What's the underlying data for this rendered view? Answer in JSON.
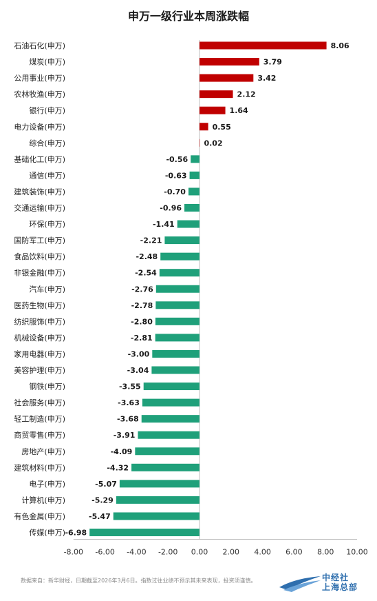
{
  "chart_data": {
    "type": "bar",
    "orientation": "horizontal",
    "title": "申万一级行业本周涨跌幅",
    "categories": [
      "石油石化(申万)",
      "煤炭(申万)",
      "公用事业(申万)",
      "农林牧渔(申万)",
      "银行(申万)",
      "电力设备(申万)",
      "综合(申万)",
      "基础化工(申万)",
      "通信(申万)",
      "建筑装饰(申万)",
      "交通运输(申万)",
      "环保(申万)",
      "国防军工(申万)",
      "食品饮料(申万)",
      "非银金融(申万)",
      "汽车(申万)",
      "医药生物(申万)",
      "纺织服饰(申万)",
      "机械设备(申万)",
      "家用电器(申万)",
      "美容护理(申万)",
      "钢铁(申万)",
      "社会服务(申万)",
      "轻工制造(申万)",
      "商贸零售(申万)",
      "房地产(申万)",
      "建筑材料(申万)",
      "电子(申万)",
      "计算机(申万)",
      "有色金属(申万)",
      "传媒(申万)"
    ],
    "values": [
      8.06,
      3.79,
      3.42,
      2.12,
      1.64,
      0.55,
      0.02,
      -0.56,
      -0.63,
      -0.7,
      -0.96,
      -1.41,
      -2.21,
      -2.48,
      -2.54,
      -2.76,
      -2.78,
      -2.8,
      -2.81,
      -3.0,
      -3.04,
      -3.55,
      -3.63,
      -3.68,
      -3.91,
      -4.09,
      -4.32,
      -5.07,
      -5.29,
      -5.47,
      -6.98
    ],
    "labels": [
      "8.06",
      "3.79",
      "3.42",
      "2.12",
      "1.64",
      "0.55",
      "0.02",
      "-0.56",
      "-0.63",
      "-0.70",
      "-0.96",
      "-1.41",
      "-2.21",
      "-2.48",
      "-2.54",
      "-2.76",
      "-2.78",
      "-2.80",
      "-2.81",
      "-3.00",
      "-3.04",
      "-3.55",
      "-3.63",
      "-3.68",
      "-3.91",
      "-4.09",
      "-4.32",
      "-5.07",
      "-5.29",
      "-5.47",
      "-6.98"
    ],
    "xlim": [
      -8,
      10
    ],
    "xticks": [
      "-8.00",
      "-6.00",
      "-4.00",
      "-2.00",
      "0.00",
      "2.00",
      "4.00",
      "6.00",
      "8.00",
      "10.00"
    ],
    "xtick_values": [
      -8,
      -6,
      -4,
      -2,
      0,
      2,
      4,
      6,
      8,
      10
    ],
    "grid": false,
    "colors": {
      "positive": "#c00000",
      "negative": "#1fa07a",
      "axis": "#bfbfbf"
    }
  },
  "footnote": "数据来自：新华财经，日期截至2026年3月6日。指数过往业绩不预示其未来表现，投资须谨慎。",
  "logo": {
    "name_line1": "中经社",
    "name_line2": "上海总部",
    "icon": "wing-logo-icon"
  }
}
